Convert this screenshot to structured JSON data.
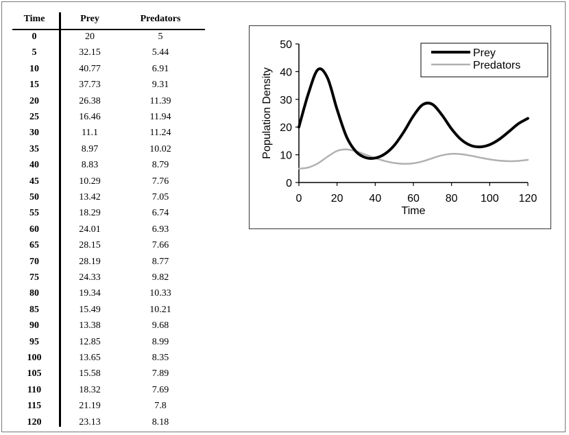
{
  "table": {
    "headers": {
      "time": "Time",
      "prey": "Prey",
      "predators": "Predators"
    },
    "rows": [
      {
        "time": "0",
        "prey": "20",
        "predators": "5"
      },
      {
        "time": "5",
        "prey": "32.15",
        "predators": "5.44"
      },
      {
        "time": "10",
        "prey": "40.77",
        "predators": "6.91"
      },
      {
        "time": "15",
        "prey": "37.73",
        "predators": "9.31"
      },
      {
        "time": "20",
        "prey": "26.38",
        "predators": "11.39"
      },
      {
        "time": "25",
        "prey": "16.46",
        "predators": "11.94"
      },
      {
        "time": "30",
        "prey": "11.1",
        "predators": "11.24"
      },
      {
        "time": "35",
        "prey": "8.97",
        "predators": "10.02"
      },
      {
        "time": "40",
        "prey": "8.83",
        "predators": "8.79"
      },
      {
        "time": "45",
        "prey": "10.29",
        "predators": "7.76"
      },
      {
        "time": "50",
        "prey": "13.42",
        "predators": "7.05"
      },
      {
        "time": "55",
        "prey": "18.29",
        "predators": "6.74"
      },
      {
        "time": "60",
        "prey": "24.01",
        "predators": "6.93"
      },
      {
        "time": "65",
        "prey": "28.15",
        "predators": "7.66"
      },
      {
        "time": "70",
        "prey": "28.19",
        "predators": "8.77"
      },
      {
        "time": "75",
        "prey": "24.33",
        "predators": "9.82"
      },
      {
        "time": "80",
        "prey": "19.34",
        "predators": "10.33"
      },
      {
        "time": "85",
        "prey": "15.49",
        "predators": "10.21"
      },
      {
        "time": "90",
        "prey": "13.38",
        "predators": "9.68"
      },
      {
        "time": "95",
        "prey": "12.85",
        "predators": "8.99"
      },
      {
        "time": "100",
        "prey": "13.65",
        "predators": "8.35"
      },
      {
        "time": "105",
        "prey": "15.58",
        "predators": "7.89"
      },
      {
        "time": "110",
        "prey": "18.32",
        "predators": "7.69"
      },
      {
        "time": "115",
        "prey": "21.19",
        "predators": "7.8"
      },
      {
        "time": "120",
        "prey": "23.13",
        "predators": "8.18"
      }
    ]
  },
  "chart_data": {
    "type": "line",
    "title": "",
    "xlabel": "Time",
    "ylabel": "Population Density",
    "xlim": [
      0,
      120
    ],
    "ylim": [
      0,
      50
    ],
    "xticks": [
      "0",
      "20",
      "40",
      "60",
      "80",
      "100",
      "120"
    ],
    "yticks": [
      "0",
      "10",
      "20",
      "30",
      "40",
      "50"
    ],
    "grid": false,
    "legend_position": "top-right",
    "x": [
      0,
      5,
      10,
      15,
      20,
      25,
      30,
      35,
      40,
      45,
      50,
      55,
      60,
      65,
      70,
      75,
      80,
      85,
      90,
      95,
      100,
      105,
      110,
      115,
      120
    ],
    "series": [
      {
        "name": "Prey",
        "color": "#000000",
        "values": [
          20,
          32.15,
          40.77,
          37.73,
          26.38,
          16.46,
          11.1,
          8.97,
          8.83,
          10.29,
          13.42,
          18.29,
          24.01,
          28.15,
          28.19,
          24.33,
          19.34,
          15.49,
          13.38,
          12.85,
          13.65,
          15.58,
          18.32,
          21.19,
          23.13
        ]
      },
      {
        "name": "Predators",
        "color": "#b0b0b0",
        "values": [
          5,
          5.44,
          6.91,
          9.31,
          11.39,
          11.94,
          11.24,
          10.02,
          8.79,
          7.76,
          7.05,
          6.74,
          6.93,
          7.66,
          8.77,
          9.82,
          10.33,
          10.21,
          9.68,
          8.99,
          8.35,
          7.89,
          7.69,
          7.8,
          8.18
        ]
      }
    ]
  }
}
